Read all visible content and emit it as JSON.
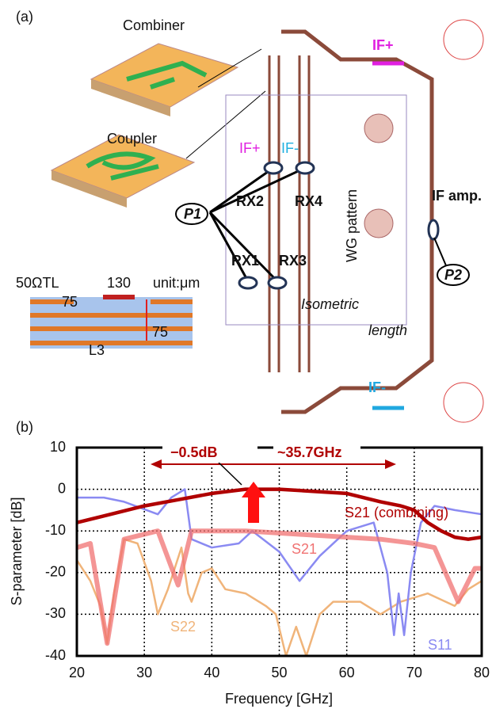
{
  "panel_a": {
    "label": "(a)",
    "combiner": "Combiner",
    "coupler": "Coupler",
    "if_plus_out": "IF+",
    "if_plus_in": "IF+",
    "if_minus_in": "IF-",
    "if_minus_out": "IF-",
    "p1": "P1",
    "p2": "P2",
    "rx1": "RX1",
    "rx2": "RX2",
    "rx3": "RX3",
    "rx4": "RX4",
    "wg_pattern": "WG pattern",
    "if_amp": "IF amp.",
    "isometric": "Isometric",
    "length": "length",
    "tl": "50ΩTL",
    "dim_75": "75",
    "dim_130": "130",
    "unit": "unit:μm",
    "dim_75_v": "75",
    "layer": "L3"
  },
  "chart_data": {
    "type": "line",
    "panel_label": "(b)",
    "xlabel": "Frequency [GHz]",
    "ylabel": "S-parameter [dB]",
    "xlim": [
      20,
      80
    ],
    "xticks": [
      20,
      30,
      40,
      50,
      60,
      70,
      80
    ],
    "ylim": [
      -40,
      10
    ],
    "yticks": [
      10,
      0,
      -10,
      -20,
      -30,
      -40
    ],
    "grid": true,
    "series": [
      {
        "name": "S22",
        "color": "#f0b47a",
        "x": [
          20,
          22,
          23.5,
          24.5,
          25.5,
          27,
          29,
          31,
          32,
          33.5,
          35.5,
          36.5,
          37,
          38.5,
          40,
          42,
          45,
          48,
          49.5,
          51,
          52.5,
          54,
          56,
          58,
          62,
          65,
          68,
          72,
          76,
          78,
          80
        ],
        "values": [
          -17,
          -22,
          -28,
          -37,
          -25,
          -12,
          -13,
          -22,
          -30,
          -24,
          -14,
          -25,
          -27,
          -20,
          -19,
          -24,
          -25,
          -28,
          -30,
          -40,
          -33,
          -40,
          -30,
          -27,
          -27,
          -30,
          -27,
          -25,
          -28,
          -24,
          -22
        ]
      },
      {
        "name": "S11",
        "color": "#8a8af2",
        "x": [
          20,
          24,
          27,
          32,
          34,
          36,
          37,
          40,
          44,
          46,
          50,
          53,
          56,
          60,
          64,
          66,
          67,
          67.7,
          68.5,
          69.5,
          71,
          73,
          76,
          80
        ],
        "values": [
          -2,
          -2,
          -3,
          -6,
          -2,
          0,
          -12,
          -14,
          -13,
          -10,
          -15,
          -22,
          -16,
          -10,
          -8,
          -20,
          -35,
          -25,
          -35,
          -20,
          -8,
          -4,
          -5,
          -6
        ]
      },
      {
        "name": "S21",
        "color": "#f07272",
        "x": [
          20,
          22,
          24.5,
          27,
          32,
          35,
          37,
          45,
          55,
          65,
          70,
          73,
          76.5,
          79,
          80
        ],
        "values": [
          -14,
          -13,
          -37,
          -12,
          -10,
          -23,
          -10,
          -10,
          -11,
          -12,
          -13,
          -14,
          -27,
          -19,
          -19
        ]
      },
      {
        "name": "S21 (combining)",
        "color": "#b00000",
        "x": [
          20,
          25,
          30,
          35,
          40,
          45,
          50,
          55,
          60,
          65,
          68,
          70,
          72,
          74,
          76,
          78,
          80
        ],
        "values": [
          -8,
          -6,
          -4,
          -2.5,
          -1,
          0,
          0,
          -0.5,
          -1,
          -3,
          -4,
          -5,
          -8,
          -10,
          -11.5,
          -12,
          -11.5
        ]
      }
    ],
    "annotations": [
      "−0.5dB",
      "~35.7GHz"
    ]
  }
}
